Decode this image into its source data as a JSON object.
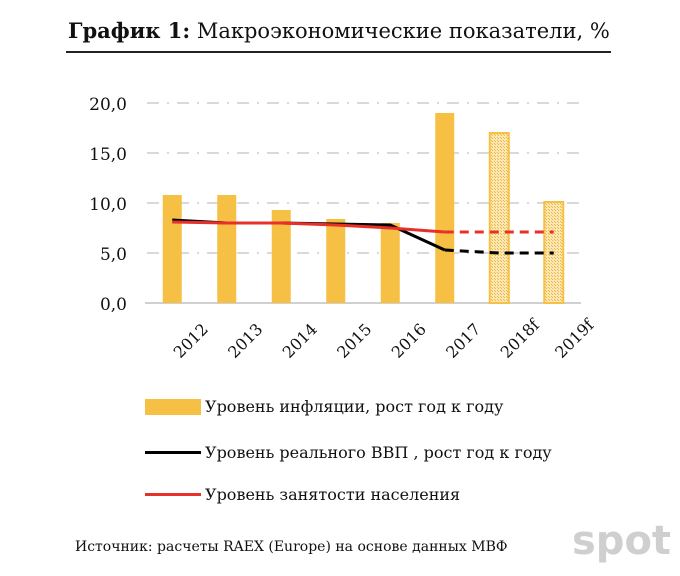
{
  "title_bold": "График 1:",
  "title_rest": " Макроэкономические показатели, %",
  "source": "Источник: расчеты RAEX (Europe) на основе данных МВФ",
  "watermark": "spot",
  "colors": {
    "bar": "#f5c044",
    "gdp": "#000000",
    "employment": "#e8302a",
    "grid": "#d9d9d9"
  },
  "chart_data": {
    "type": "bar+line",
    "title": "Макроэкономические показатели, %",
    "categories": [
      "2012",
      "2013",
      "2014",
      "2015",
      "2016",
      "2017",
      "2018f",
      "2019f"
    ],
    "forecast_from_index": 5,
    "ylim": [
      0,
      20
    ],
    "yticks": [
      "0,0",
      "5,0",
      "10,0",
      "15,0",
      "20,0"
    ],
    "ytick_values": [
      0,
      5,
      10,
      15,
      20
    ],
    "grid": true,
    "legend_position": "bottom",
    "series": [
      {
        "name": "Уровень инфляции, рост год к году",
        "type": "bar",
        "values": [
          10.8,
          10.8,
          9.3,
          8.4,
          8.0,
          19.0,
          17.0,
          10.1
        ]
      },
      {
        "name": "Уровень реального ВВП , рост год к году",
        "type": "line",
        "values": [
          8.3,
          8.0,
          8.0,
          7.9,
          7.8,
          5.3,
          5.0,
          5.0
        ]
      },
      {
        "name": "Уровень занятости населения",
        "type": "line",
        "values": [
          8.1,
          8.0,
          8.0,
          7.8,
          7.5,
          7.1,
          7.1,
          7.1
        ]
      }
    ]
  }
}
